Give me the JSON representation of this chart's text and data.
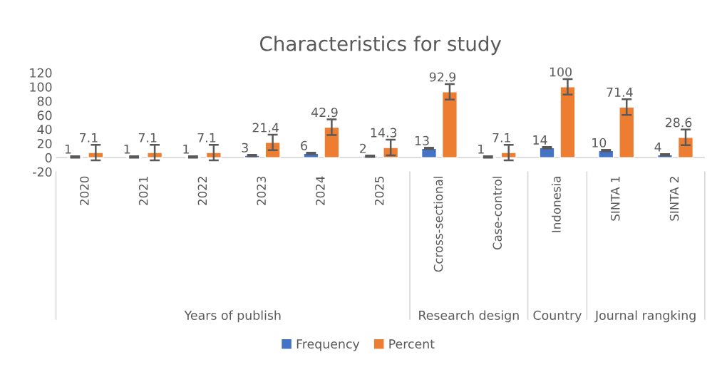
{
  "chart_data": {
    "type": "bar",
    "title": "Characteristics for study",
    "categories": [
      "2020",
      "2021",
      "2022",
      "2023",
      "2024",
      "2025",
      "Ccross-sectional",
      "Case-control",
      "Indonesia",
      "SINTA 1",
      "SINTA 2"
    ],
    "series": [
      {
        "name": "Frequency",
        "color": "#4472c4",
        "values": [
          1,
          1,
          1,
          3,
          6,
          2,
          13,
          1,
          14,
          10,
          4
        ],
        "errors": [
          1,
          1,
          1,
          1,
          1,
          1,
          1,
          1,
          1,
          1,
          1
        ]
      },
      {
        "name": "Percent",
        "color": "#ed7d31",
        "values": [
          7.1,
          7.1,
          7.1,
          21.4,
          42.9,
          14.3,
          92.9,
          7.1,
          100,
          71.4,
          28.6
        ],
        "errors": [
          11,
          11,
          11,
          11,
          11,
          11,
          11,
          11,
          11,
          11,
          11
        ]
      }
    ],
    "annotations": [
      "Years of publish",
      "Research design",
      "Country",
      "Journal rangking"
    ],
    "ylim": [
      -20,
      120
    ],
    "yticks": [
      -20,
      0,
      20,
      40,
      60,
      80,
      100,
      120
    ],
    "data_labels": true,
    "legend": "bottom",
    "grid": false
  }
}
